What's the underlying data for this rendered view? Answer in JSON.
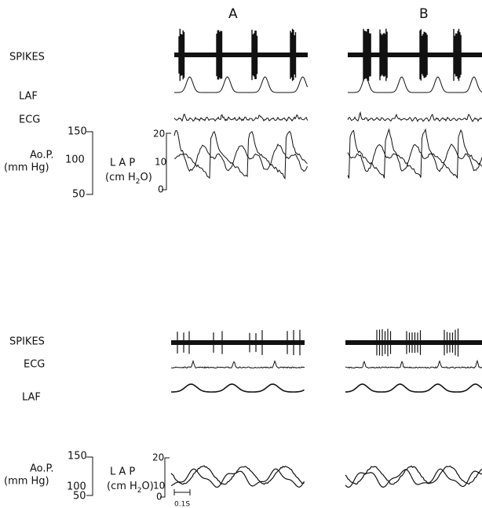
{
  "top": {
    "panels": [
      "A",
      "B"
    ],
    "rows": [
      "SPIKES",
      "LAF",
      "ECG"
    ],
    "aop": {
      "label": "Ao.P.",
      "unit": "(mm Hg)",
      "ticks": [
        "150",
        "100",
        "50"
      ]
    },
    "lap": {
      "label": "L A P",
      "unit_prefix": "(cm H",
      "unit_sub": "2",
      "unit_suffix": "O)",
      "ticks": [
        "20",
        "10",
        "0"
      ]
    }
  },
  "bottom": {
    "rows": [
      "SPIKES",
      "ECG",
      "LAF"
    ],
    "aop": {
      "label": "Ao.P.",
      "unit": "(mm Hg)",
      "ticks": [
        "150",
        "100",
        "50"
      ]
    },
    "lap": {
      "label": "L A P",
      "unit_prefix": "(cm H",
      "unit_sub": "2",
      "unit_suffix": "O)",
      "ticks": [
        "20",
        "10",
        "0"
      ]
    }
  },
  "scale": "0.1S"
}
